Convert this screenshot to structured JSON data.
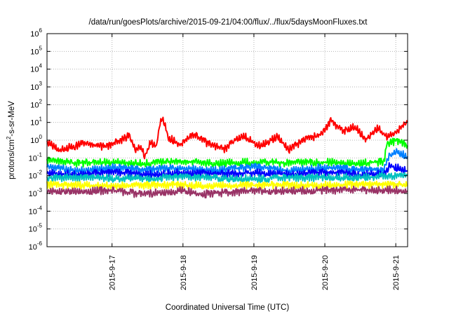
{
  "chart_data": {
    "type": "line",
    "title": "/data/run/goesPlots/archive/2015-09-21/04:00/flux/../flux/5daysMoonFluxes.txt",
    "xlabel": "Coordinated Universal Time (UTC)",
    "ylabel": {
      "prefix": "protons/cm",
      "superscript": "2",
      "suffix": "-s-sr-MeV"
    },
    "xlim": [
      "2015-09-16T02:00",
      "2015-09-21T04:00"
    ],
    "xticks": [
      "2015-9-17",
      "2015-9-18",
      "2015-9-19",
      "2015-9-20",
      "2015-9-21"
    ],
    "ylim": [
      1e-06,
      1000000.0
    ],
    "yscale": "log",
    "yticks": [
      {
        "base": "10",
        "exp": "-6",
        "value": 1e-06
      },
      {
        "base": "10",
        "exp": "-5",
        "value": 1e-05
      },
      {
        "base": "10",
        "exp": "-4",
        "value": 0.0001
      },
      {
        "base": "10",
        "exp": "-3",
        "value": 0.001
      },
      {
        "base": "10",
        "exp": "-2",
        "value": 0.01
      },
      {
        "base": "10",
        "exp": "-1",
        "value": 0.1
      },
      {
        "base": "10",
        "exp": "0",
        "value": 1
      },
      {
        "base": "10",
        "exp": "1",
        "value": 10
      },
      {
        "base": "10",
        "exp": "2",
        "value": 100
      },
      {
        "base": "10",
        "exp": "3",
        "value": 1000
      },
      {
        "base": "10",
        "exp": "4",
        "value": 10000
      },
      {
        "base": "10",
        "exp": "5",
        "value": 100000
      },
      {
        "base": "10",
        "exp": "6",
        "value": 1000000
      }
    ],
    "grid": true,
    "series": [
      {
        "color": "#ff0000",
        "values": [
          [
            "2015-09-16T02:00",
            0.9
          ],
          [
            "2015-09-16T06:00",
            0.3
          ],
          [
            "2015-09-16T14:00",
            0.6
          ],
          [
            "2015-09-16T22:00",
            0.4
          ],
          [
            "2015-09-17T06:00",
            1.8
          ],
          [
            "2015-09-17T08:00",
            0.3
          ],
          [
            "2015-09-17T10:00",
            0.5
          ],
          [
            "2015-09-17T11:00",
            0.12
          ],
          [
            "2015-09-17T13:00",
            0.7
          ],
          [
            "2015-09-17T15:00",
            0.5
          ],
          [
            "2015-09-17T16:00",
            6
          ],
          [
            "2015-09-17T17:00",
            20
          ],
          [
            "2015-09-17T18:00",
            8
          ],
          [
            "2015-09-17T19:00",
            1.5
          ],
          [
            "2015-09-17T23:00",
            0.6
          ],
          [
            "2015-09-18T04:00",
            2
          ],
          [
            "2015-09-18T08:00",
            0.7
          ],
          [
            "2015-09-18T14:00",
            0.3
          ],
          [
            "2015-09-18T20:00",
            2
          ],
          [
            "2015-09-19T02:00",
            0.5
          ],
          [
            "2015-09-19T08:00",
            1.6
          ],
          [
            "2015-09-19T12:00",
            0.3
          ],
          [
            "2015-09-19T18:00",
            1.2
          ],
          [
            "2015-09-19T23:00",
            2
          ],
          [
            "2015-09-20T02:00",
            12
          ],
          [
            "2015-09-20T06:00",
            3
          ],
          [
            "2015-09-20T10:00",
            6
          ],
          [
            "2015-09-20T14:00",
            1.2
          ],
          [
            "2015-09-20T18:00",
            5
          ],
          [
            "2015-09-20T21:00",
            1.5
          ],
          [
            "2015-09-21T00:00",
            3
          ],
          [
            "2015-09-21T04:00",
            10
          ]
        ]
      },
      {
        "color": "#00ff00",
        "values": [
          [
            "2015-09-16T02:00",
            0.07
          ],
          [
            "2015-09-16T12:00",
            0.05
          ],
          [
            "2015-09-17T00:00",
            0.06
          ],
          [
            "2015-09-17T12:00",
            0.05
          ],
          [
            "2015-09-18T00:00",
            0.06
          ],
          [
            "2015-09-18T12:00",
            0.05
          ],
          [
            "2015-09-19T00:00",
            0.06
          ],
          [
            "2015-09-19T12:00",
            0.05
          ],
          [
            "2015-09-20T00:00",
            0.06
          ],
          [
            "2015-09-20T12:00",
            0.05
          ],
          [
            "2015-09-20T20:00",
            0.06
          ],
          [
            "2015-09-20T21:00",
            0.6
          ],
          [
            "2015-09-21T00:00",
            0.9
          ],
          [
            "2015-09-21T04:00",
            0.5
          ]
        ]
      },
      {
        "color": "#0080ff",
        "values": [
          [
            "2015-09-16T02:00",
            0.03
          ],
          [
            "2015-09-16T12:00",
            0.02
          ],
          [
            "2015-09-17T00:00",
            0.03
          ],
          [
            "2015-09-17T12:00",
            0.02
          ],
          [
            "2015-09-18T00:00",
            0.03
          ],
          [
            "2015-09-18T12:00",
            0.02
          ],
          [
            "2015-09-19T00:00",
            0.03
          ],
          [
            "2015-09-19T12:00",
            0.02
          ],
          [
            "2015-09-20T00:00",
            0.03
          ],
          [
            "2015-09-20T12:00",
            0.02
          ],
          [
            "2015-09-20T20:00",
            0.02
          ],
          [
            "2015-09-20T22:00",
            0.15
          ],
          [
            "2015-09-21T00:00",
            0.25
          ],
          [
            "2015-09-21T04:00",
            0.12
          ]
        ]
      },
      {
        "color": "#0000ff",
        "values": [
          [
            "2015-09-16T02:00",
            0.015
          ],
          [
            "2015-09-16T12:00",
            0.012
          ],
          [
            "2015-09-17T00:00",
            0.015
          ],
          [
            "2015-09-17T12:00",
            0.012
          ],
          [
            "2015-09-18T00:00",
            0.015
          ],
          [
            "2015-09-18T12:00",
            0.012
          ],
          [
            "2015-09-19T00:00",
            0.015
          ],
          [
            "2015-09-19T12:00",
            0.012
          ],
          [
            "2015-09-20T00:00",
            0.015
          ],
          [
            "2015-09-20T12:00",
            0.012
          ],
          [
            "2015-09-20T20:00",
            0.013
          ],
          [
            "2015-09-20T22:00",
            0.04
          ],
          [
            "2015-09-21T00:00",
            0.03
          ],
          [
            "2015-09-21T04:00",
            0.018
          ]
        ]
      },
      {
        "color": "#00c0c0",
        "values": [
          [
            "2015-09-16T02:00",
            0.008
          ],
          [
            "2015-09-17T00:00",
            0.007
          ],
          [
            "2015-09-18T00:00",
            0.008
          ],
          [
            "2015-09-19T00:00",
            0.007
          ],
          [
            "2015-09-20T00:00",
            0.008
          ],
          [
            "2015-09-21T00:00",
            0.009
          ],
          [
            "2015-09-21T04:00",
            0.01
          ]
        ]
      },
      {
        "color": "#ffff00",
        "values": [
          [
            "2015-09-16T02:00",
            0.003
          ],
          [
            "2015-09-17T00:00",
            0.0028
          ],
          [
            "2015-09-18T00:00",
            0.003
          ],
          [
            "2015-09-19T00:00",
            0.0028
          ],
          [
            "2015-09-20T00:00",
            0.003
          ],
          [
            "2015-09-21T00:00",
            0.0032
          ],
          [
            "2015-09-21T04:00",
            0.003
          ]
        ]
      },
      {
        "color": "#993366",
        "values": [
          [
            "2015-09-16T02:00",
            0.0015
          ],
          [
            "2015-09-17T00:00",
            0.0014
          ],
          [
            "2015-09-17T10:00",
            0.0009
          ],
          [
            "2015-09-18T00:00",
            0.0015
          ],
          [
            "2015-09-18T06:00",
            0.0009
          ],
          [
            "2015-09-19T00:00",
            0.0014
          ],
          [
            "2015-09-20T00:00",
            0.0015
          ],
          [
            "2015-09-21T00:00",
            0.0016
          ],
          [
            "2015-09-21T04:00",
            0.0014
          ]
        ]
      }
    ]
  }
}
